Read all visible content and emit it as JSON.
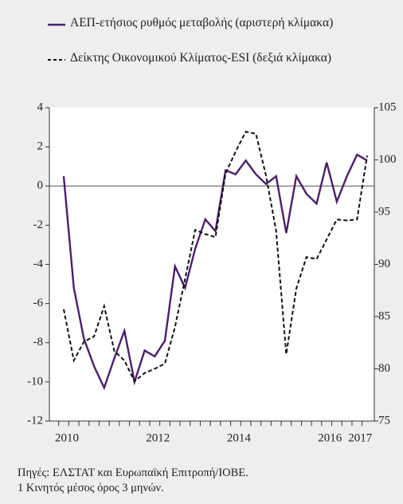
{
  "chart_data": {
    "type": "line",
    "categories": [
      "2010",
      null,
      null,
      null,
      null,
      null,
      null,
      null,
      null,
      "2012",
      null,
      null,
      null,
      null,
      null,
      null,
      null,
      "2014",
      null,
      null,
      null,
      null,
      null,
      null,
      null,
      null,
      "2016",
      null,
      null,
      "2017",
      null
    ],
    "series": [
      {
        "name": "ΑΕΠ-ετήσιος ρυθμός μεταβολής (αριστερή κλίμακα)",
        "color": "#4b1f6b",
        "axis": "y",
        "values": [
          0.5,
          -5.2,
          -7.8,
          -9.2,
          -10.3,
          -8.8,
          -7.4,
          -10.0,
          -8.4,
          -8.7,
          -7.9,
          -4.1,
          -5.2,
          -3.2,
          -1.7,
          -2.3,
          0.8,
          0.6,
          1.3,
          0.6,
          0.1,
          0.5,
          -2.4,
          0.5,
          -0.4,
          -0.9,
          1.2,
          -0.8,
          0.5,
          1.6,
          1.3
        ]
      },
      {
        "name": "Δείκτης Οικονομικού Κλίματος-ESI (δεξιά κλίμακα)",
        "color": "#111111",
        "axis": "y2",
        "dashed": true,
        "values": [
          85.7,
          80.8,
          82.6,
          83.1,
          86.0,
          81.7,
          80.8,
          78.8,
          79.6,
          80.0,
          80.5,
          84.0,
          88.6,
          93.3,
          92.9,
          92.6,
          98.7,
          100.8,
          102.7,
          102.5,
          98.5,
          93.2,
          81.4,
          87.7,
          90.7,
          90.5,
          92.4,
          94.3,
          94.2,
          94.3,
          100.4
        ]
      }
    ],
    "ylim": [
      -12,
      4
    ],
    "yticks": [
      -12,
      -10,
      -8,
      -6,
      -4,
      -2,
      0,
      2,
      4
    ],
    "y2lim": [
      75,
      105
    ],
    "y2ticks": [
      75,
      80,
      85,
      90,
      95,
      100,
      105
    ],
    "notes": [
      "Πηγές: ΕΛΣΤΑΤ και Ευρωπαϊκή Επιτροπή/ΙΟΒΕ.",
      "1 Κινητός μέσος όρος 3 μηνών."
    ]
  }
}
